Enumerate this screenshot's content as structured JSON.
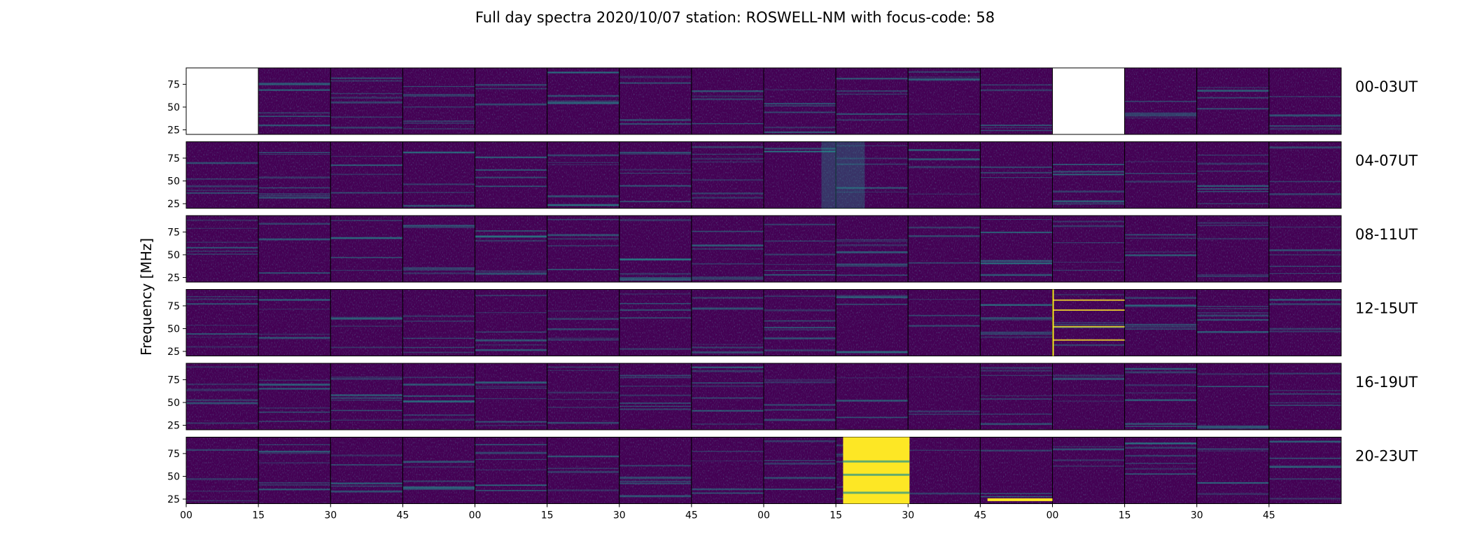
{
  "chart_data": {
    "type": "heatmap",
    "title": "Full day spectra 2020/10/07 station: ROSWELL-NM with focus-code: 58",
    "ylabel": "Frequency [MHz]",
    "xlabel": "",
    "ylim": [
      20,
      93
    ],
    "y_ticks": [
      "25",
      "50",
      "75"
    ],
    "y_tick_values": [
      25,
      50,
      75
    ],
    "x_tick_labels": [
      "00",
      "15",
      "30",
      "45",
      "00",
      "15",
      "30",
      "45",
      "00",
      "15",
      "30",
      "45",
      "00",
      "15",
      "30",
      "45"
    ],
    "panels_per_row": 16,
    "colormap": "viridis",
    "colors": {
      "background": "#440154",
      "mid": "#21918c",
      "high": "#fde725"
    },
    "rows": [
      {
        "label": "00-03UT",
        "missing_panels": [
          0,
          12
        ]
      },
      {
        "label": "04-07UT",
        "missing_panels": []
      },
      {
        "label": "08-11UT",
        "missing_panels": []
      },
      {
        "label": "12-15UT",
        "missing_panels": []
      },
      {
        "label": "16-19UT",
        "missing_panels": []
      },
      {
        "label": "20-23UT",
        "missing_panels": []
      }
    ]
  }
}
